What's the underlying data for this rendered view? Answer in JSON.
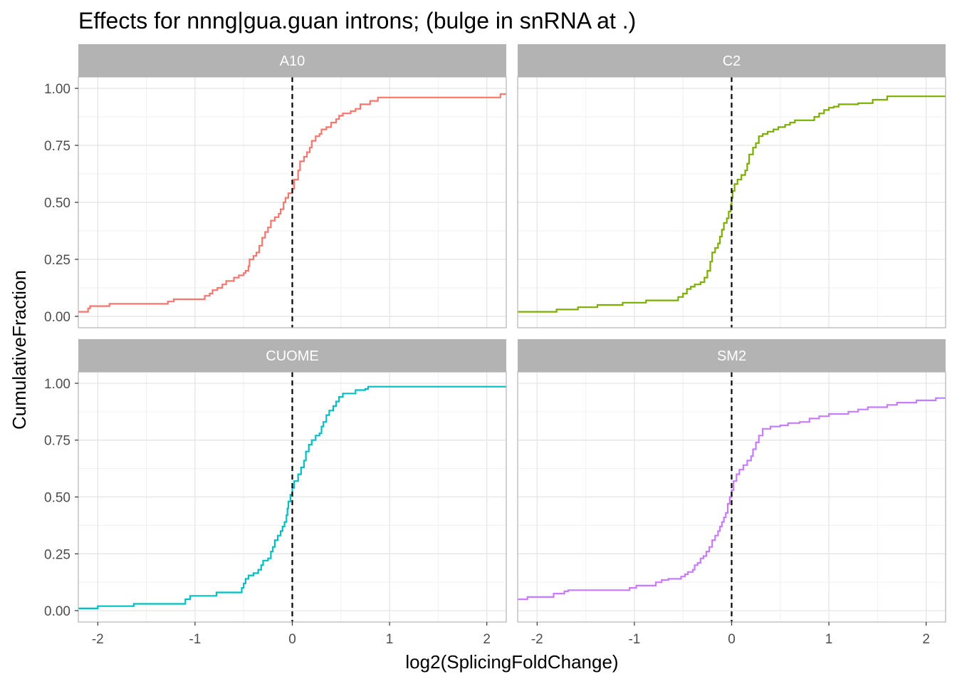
{
  "chart_data": {
    "type": "line",
    "title": "Effects for nnng|gua.guan introns; (bulge in snRNA at .)",
    "xlabel": "log2(SplicingFoldChange)",
    "ylabel": "CumulativeFraction",
    "xlim": [
      -2.2,
      2.2
    ],
    "ylim": [
      -0.05,
      1.05
    ],
    "x_ticks": [
      -2,
      -1,
      0,
      1,
      2
    ],
    "x_tick_labels": [
      "-2",
      "-1",
      "0",
      "1",
      "2"
    ],
    "y_ticks": [
      0,
      0.25,
      0.5,
      0.75,
      1
    ],
    "y_tick_labels": [
      "0.00",
      "0.25",
      "0.50",
      "0.75",
      "1.00"
    ],
    "grid": true,
    "reference_line": {
      "x": 0,
      "style": "dashed",
      "color": "#000000"
    },
    "facets": [
      {
        "name": "A10",
        "color": "#F8766D",
        "points": [
          [
            -2.2,
            0.02
          ],
          [
            -2.12,
            0.02
          ],
          [
            -2.1,
            0.035
          ],
          [
            -2.08,
            0.045
          ],
          [
            -1.9,
            0.045
          ],
          [
            -1.88,
            0.055
          ],
          [
            -1.3,
            0.055
          ],
          [
            -1.28,
            0.065
          ],
          [
            -1.22,
            0.075
          ],
          [
            -0.92,
            0.075
          ],
          [
            -0.9,
            0.09
          ],
          [
            -0.85,
            0.1
          ],
          [
            -0.82,
            0.115
          ],
          [
            -0.77,
            0.125
          ],
          [
            -0.72,
            0.14
          ],
          [
            -0.68,
            0.155
          ],
          [
            -0.6,
            0.17
          ],
          [
            -0.55,
            0.18
          ],
          [
            -0.5,
            0.19
          ],
          [
            -0.48,
            0.2
          ],
          [
            -0.45,
            0.22
          ],
          [
            -0.44,
            0.25
          ],
          [
            -0.4,
            0.265
          ],
          [
            -0.37,
            0.28
          ],
          [
            -0.34,
            0.31
          ],
          [
            -0.31,
            0.345
          ],
          [
            -0.28,
            0.37
          ],
          [
            -0.25,
            0.39
          ],
          [
            -0.22,
            0.42
          ],
          [
            -0.18,
            0.435
          ],
          [
            -0.14,
            0.45
          ],
          [
            -0.12,
            0.47
          ],
          [
            -0.09,
            0.5
          ],
          [
            -0.07,
            0.52
          ],
          [
            -0.04,
            0.54
          ],
          [
            0.0,
            0.56
          ],
          [
            0.02,
            0.6
          ],
          [
            0.06,
            0.64
          ],
          [
            0.08,
            0.68
          ],
          [
            0.12,
            0.7
          ],
          [
            0.15,
            0.72
          ],
          [
            0.18,
            0.74
          ],
          [
            0.2,
            0.77
          ],
          [
            0.24,
            0.79
          ],
          [
            0.28,
            0.8
          ],
          [
            0.3,
            0.82
          ],
          [
            0.35,
            0.83
          ],
          [
            0.4,
            0.85
          ],
          [
            0.45,
            0.865
          ],
          [
            0.48,
            0.88
          ],
          [
            0.52,
            0.89
          ],
          [
            0.6,
            0.9
          ],
          [
            0.65,
            0.91
          ],
          [
            0.7,
            0.93
          ],
          [
            0.8,
            0.945
          ],
          [
            0.88,
            0.96
          ],
          [
            1.5,
            0.96
          ],
          [
            2.1,
            0.96
          ],
          [
            2.14,
            0.975
          ],
          [
            2.2,
            0.975
          ]
        ]
      },
      {
        "name": "C2",
        "color": "#7CAE00",
        "points": [
          [
            -2.2,
            0.02
          ],
          [
            -1.82,
            0.02
          ],
          [
            -1.8,
            0.03
          ],
          [
            -1.6,
            0.03
          ],
          [
            -1.58,
            0.04
          ],
          [
            -1.4,
            0.04
          ],
          [
            -1.38,
            0.05
          ],
          [
            -1.14,
            0.05
          ],
          [
            -1.12,
            0.06
          ],
          [
            -0.9,
            0.06
          ],
          [
            -0.88,
            0.07
          ],
          [
            -0.57,
            0.07
          ],
          [
            -0.55,
            0.085
          ],
          [
            -0.5,
            0.1
          ],
          [
            -0.46,
            0.12
          ],
          [
            -0.42,
            0.13
          ],
          [
            -0.38,
            0.14
          ],
          [
            -0.32,
            0.15
          ],
          [
            -0.28,
            0.17
          ],
          [
            -0.25,
            0.2
          ],
          [
            -0.22,
            0.24
          ],
          [
            -0.2,
            0.28
          ],
          [
            -0.17,
            0.3
          ],
          [
            -0.14,
            0.32
          ],
          [
            -0.12,
            0.35
          ],
          [
            -0.1,
            0.38
          ],
          [
            -0.08,
            0.41
          ],
          [
            -0.05,
            0.43
          ],
          [
            -0.03,
            0.46
          ],
          [
            -0.01,
            0.49
          ],
          [
            0.0,
            0.52
          ],
          [
            0.01,
            0.55
          ],
          [
            0.03,
            0.58
          ],
          [
            0.06,
            0.6
          ],
          [
            0.1,
            0.62
          ],
          [
            0.14,
            0.64
          ],
          [
            0.16,
            0.67
          ],
          [
            0.18,
            0.71
          ],
          [
            0.22,
            0.74
          ],
          [
            0.25,
            0.76
          ],
          [
            0.28,
            0.79
          ],
          [
            0.32,
            0.8
          ],
          [
            0.37,
            0.81
          ],
          [
            0.43,
            0.82
          ],
          [
            0.48,
            0.83
          ],
          [
            0.55,
            0.84
          ],
          [
            0.6,
            0.85
          ],
          [
            0.65,
            0.86
          ],
          [
            0.8,
            0.86
          ],
          [
            0.85,
            0.875
          ],
          [
            0.9,
            0.89
          ],
          [
            0.95,
            0.905
          ],
          [
            1.0,
            0.915
          ],
          [
            1.05,
            0.92
          ],
          [
            1.1,
            0.93
          ],
          [
            1.3,
            0.935
          ],
          [
            1.45,
            0.95
          ],
          [
            1.6,
            0.965
          ],
          [
            2.2,
            0.965
          ]
        ]
      },
      {
        "name": "CUOME",
        "color": "#00BFC4",
        "points": [
          [
            -2.2,
            0.01
          ],
          [
            -2.02,
            0.01
          ],
          [
            -2.0,
            0.02
          ],
          [
            -1.65,
            0.02
          ],
          [
            -1.63,
            0.03
          ],
          [
            -1.12,
            0.03
          ],
          [
            -1.1,
            0.05
          ],
          [
            -1.05,
            0.065
          ],
          [
            -0.8,
            0.065
          ],
          [
            -0.78,
            0.08
          ],
          [
            -0.55,
            0.08
          ],
          [
            -0.52,
            0.1
          ],
          [
            -0.5,
            0.12
          ],
          [
            -0.48,
            0.14
          ],
          [
            -0.45,
            0.155
          ],
          [
            -0.4,
            0.165
          ],
          [
            -0.35,
            0.18
          ],
          [
            -0.32,
            0.2
          ],
          [
            -0.3,
            0.22
          ],
          [
            -0.25,
            0.23
          ],
          [
            -0.22,
            0.26
          ],
          [
            -0.2,
            0.28
          ],
          [
            -0.18,
            0.31
          ],
          [
            -0.15,
            0.33
          ],
          [
            -0.12,
            0.35
          ],
          [
            -0.1,
            0.37
          ],
          [
            -0.08,
            0.39
          ],
          [
            -0.06,
            0.42
          ],
          [
            -0.05,
            0.45
          ],
          [
            -0.04,
            0.48
          ],
          [
            -0.02,
            0.51
          ],
          [
            0.0,
            0.54
          ],
          [
            0.02,
            0.57
          ],
          [
            0.06,
            0.6
          ],
          [
            0.09,
            0.63
          ],
          [
            0.12,
            0.66
          ],
          [
            0.14,
            0.7
          ],
          [
            0.17,
            0.73
          ],
          [
            0.2,
            0.75
          ],
          [
            0.24,
            0.77
          ],
          [
            0.28,
            0.78
          ],
          [
            0.3,
            0.81
          ],
          [
            0.32,
            0.83
          ],
          [
            0.35,
            0.86
          ],
          [
            0.38,
            0.88
          ],
          [
            0.42,
            0.9
          ],
          [
            0.45,
            0.92
          ],
          [
            0.48,
            0.94
          ],
          [
            0.52,
            0.955
          ],
          [
            0.62,
            0.955
          ],
          [
            0.65,
            0.97
          ],
          [
            0.75,
            0.975
          ],
          [
            0.78,
            0.985
          ],
          [
            2.2,
            0.985
          ]
        ]
      },
      {
        "name": "SM2",
        "color": "#C77CFF",
        "points": [
          [
            -2.2,
            0.05
          ],
          [
            -2.12,
            0.05
          ],
          [
            -2.1,
            0.06
          ],
          [
            -1.85,
            0.06
          ],
          [
            -1.83,
            0.075
          ],
          [
            -1.72,
            0.085
          ],
          [
            -1.68,
            0.09
          ],
          [
            -1.1,
            0.09
          ],
          [
            -1.05,
            0.1
          ],
          [
            -0.98,
            0.11
          ],
          [
            -0.8,
            0.11
          ],
          [
            -0.78,
            0.125
          ],
          [
            -0.72,
            0.135
          ],
          [
            -0.65,
            0.14
          ],
          [
            -0.55,
            0.14
          ],
          [
            -0.52,
            0.15
          ],
          [
            -0.48,
            0.16
          ],
          [
            -0.45,
            0.17
          ],
          [
            -0.4,
            0.18
          ],
          [
            -0.38,
            0.2
          ],
          [
            -0.35,
            0.21
          ],
          [
            -0.32,
            0.23
          ],
          [
            -0.29,
            0.24
          ],
          [
            -0.26,
            0.26
          ],
          [
            -0.23,
            0.28
          ],
          [
            -0.2,
            0.31
          ],
          [
            -0.17,
            0.33
          ],
          [
            -0.14,
            0.35
          ],
          [
            -0.12,
            0.37
          ],
          [
            -0.1,
            0.39
          ],
          [
            -0.08,
            0.41
          ],
          [
            -0.06,
            0.43
          ],
          [
            -0.04,
            0.47
          ],
          [
            -0.02,
            0.5
          ],
          [
            0.0,
            0.53
          ],
          [
            0.02,
            0.57
          ],
          [
            0.05,
            0.6
          ],
          [
            0.08,
            0.62
          ],
          [
            0.12,
            0.64
          ],
          [
            0.16,
            0.66
          ],
          [
            0.2,
            0.68
          ],
          [
            0.22,
            0.71
          ],
          [
            0.25,
            0.74
          ],
          [
            0.28,
            0.77
          ],
          [
            0.32,
            0.8
          ],
          [
            0.4,
            0.81
          ],
          [
            0.5,
            0.815
          ],
          [
            0.58,
            0.825
          ],
          [
            0.7,
            0.83
          ],
          [
            0.8,
            0.845
          ],
          [
            0.9,
            0.855
          ],
          [
            1.0,
            0.865
          ],
          [
            1.2,
            0.875
          ],
          [
            1.3,
            0.885
          ],
          [
            1.4,
            0.895
          ],
          [
            1.6,
            0.905
          ],
          [
            1.7,
            0.915
          ],
          [
            1.9,
            0.925
          ],
          [
            2.1,
            0.935
          ],
          [
            2.2,
            0.935
          ]
        ]
      }
    ]
  }
}
